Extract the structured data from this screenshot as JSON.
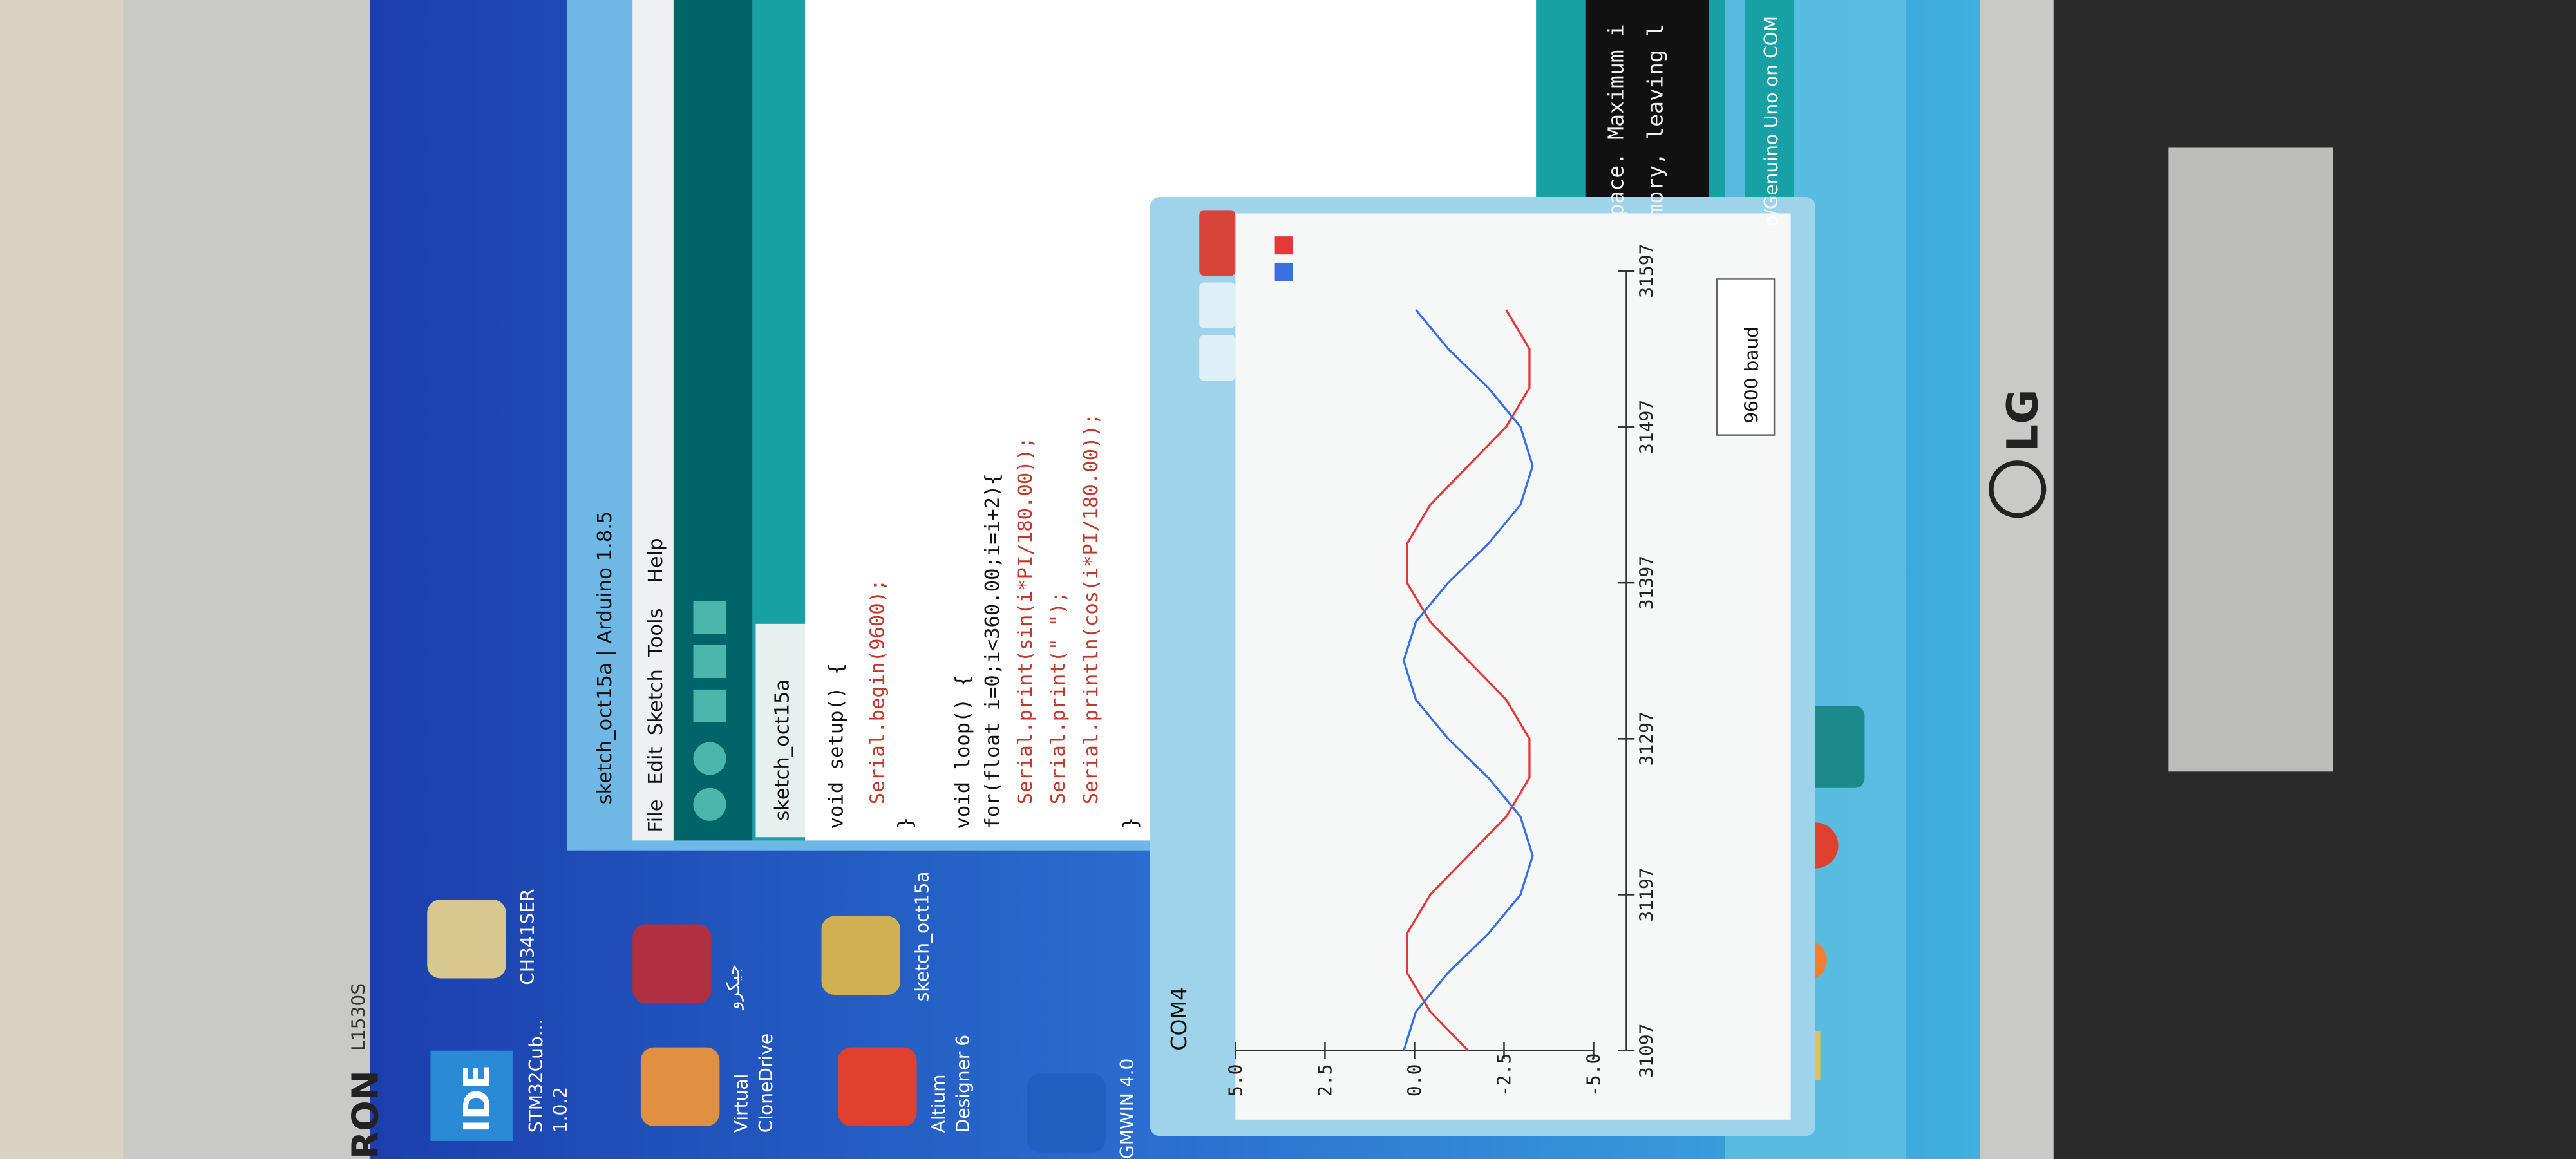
{
  "monitor": {
    "brand": "RON",
    "model": "L1530S",
    "logo": "LG"
  },
  "desktop": {
    "ide_badge": "IDE",
    "icons": [
      {
        "lines": [
          "STM32Cub...",
          "1.0.2"
        ]
      },
      {
        "lines": [
          "CH341SER"
        ]
      },
      {
        "lines": [
          "Virtual",
          "CloneDrive"
        ]
      },
      {
        "lines": [
          "جيكرو"
        ]
      },
      {
        "lines": [
          "Altium",
          "Designer 6"
        ]
      },
      {
        "lines": [
          "sketch_oct15a"
        ]
      },
      {
        "lines": [
          "GMWIN 4.0"
        ]
      }
    ]
  },
  "arduino": {
    "title": "sketch_oct15a | Arduino 1.8.5",
    "menu": [
      "File",
      "Edit",
      "Sketch",
      "Tools",
      "Help"
    ],
    "tab": "sketch_oct15a",
    "code": [
      "void setup() {",
      "Serial.begin(9600);",
      "}",
      "void loop() {",
      "for(float i=0;i<360.00;i=i+2){",
      "Serial.print(sin(i*PI/180.00));",
      "Serial.print(\" \");",
      "Serial.println(cos(i*PI/180.00));",
      "}"
    ],
    "console": [
      "pace. Maximum i",
      "mory, leaving l"
    ],
    "status": "o/Genuino Uno on COM"
  },
  "chart_data": {
    "type": "line",
    "title": "COM4",
    "baud": "9600 baud",
    "x": [
      31097,
      31122,
      31147,
      31172,
      31197,
      31222,
      31247,
      31272,
      31297,
      31322,
      31347,
      31372,
      31397,
      31422,
      31447,
      31472,
      31497,
      31522,
      31547,
      31572
    ],
    "series": [
      {
        "color": "#e23a3a",
        "values": [
          -1.5,
          -0.44,
          0.21,
          0.21,
          -0.44,
          -1.5,
          -2.56,
          -3.21,
          -3.21,
          -2.56,
          -1.5,
          -0.44,
          0.21,
          0.21,
          -0.44,
          -1.5,
          -2.56,
          -3.21,
          -3.21,
          -2.56
        ]
      },
      {
        "color": "#3a6fe0",
        "values": [
          0.3,
          -0.04,
          -0.94,
          -2.06,
          -2.96,
          -3.3,
          -2.96,
          -2.06,
          -0.94,
          -0.04,
          0.3,
          -0.04,
          -0.94,
          -2.06,
          -2.96,
          -3.3,
          -2.96,
          -2.06,
          -0.94,
          -0.04
        ]
      }
    ],
    "ylim": [
      -5,
      5
    ],
    "yticks": [
      {
        "value": 5,
        "label": "5.0"
      },
      {
        "value": 2.5,
        "label": "2.5"
      },
      {
        "value": 0,
        "label": "0.0"
      },
      {
        "value": -2.5,
        "label": "-2.5"
      },
      {
        "value": -5,
        "label": "-5.0"
      }
    ],
    "xlim": [
      31097,
      31597
    ],
    "xticks": [
      31097,
      31197,
      31297,
      31397,
      31497,
      31597
    ]
  }
}
